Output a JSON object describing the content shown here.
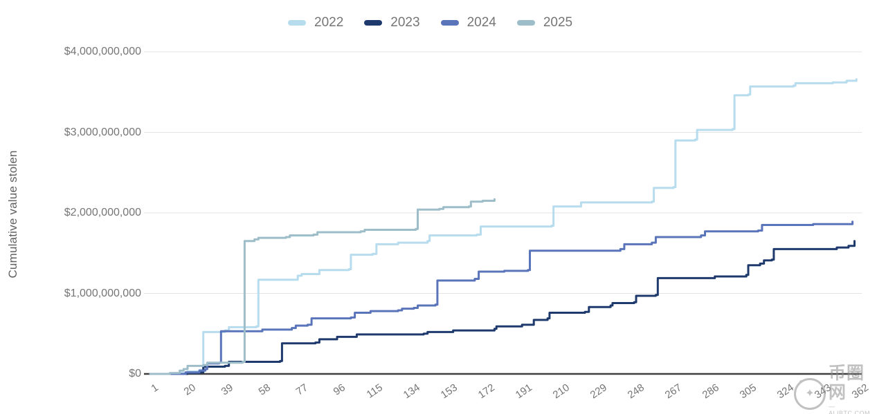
{
  "chart_data": {
    "type": "line",
    "line_style": "step-after",
    "title": "",
    "xlabel": "",
    "ylabel": "Cumulative value stolen",
    "value_unit": "USD (billions)",
    "x_meaning": "day of year",
    "xlim": [
      1,
      366
    ],
    "ylim": [
      0,
      4
    ],
    "grid": "horizontal",
    "legend_position": "top",
    "x_ticks": [
      1,
      20,
      39,
      58,
      77,
      96,
      115,
      134,
      153,
      172,
      191,
      210,
      229,
      248,
      267,
      286,
      305,
      324,
      343,
      362
    ],
    "y_ticks": [
      {
        "value": 0,
        "label": "$0"
      },
      {
        "value": 1,
        "label": "$1,000,000,000"
      },
      {
        "value": 2,
        "label": "$2,000,000,000"
      },
      {
        "value": 3,
        "label": "$3,000,000,000"
      },
      {
        "value": 4,
        "label": "$4,000,000,000"
      }
    ],
    "series": [
      {
        "name": "2022",
        "color": "#b7dcee",
        "points": [
          [
            1,
            0
          ],
          [
            14,
            0.01
          ],
          [
            20,
            0.03
          ],
          [
            26,
            0.05
          ],
          [
            28,
            0.52
          ],
          [
            39,
            0.54
          ],
          [
            41,
            0.58
          ],
          [
            55,
            0.59
          ],
          [
            56,
            1.17
          ],
          [
            76,
            1.22
          ],
          [
            78,
            1.24
          ],
          [
            87,
            1.29
          ],
          [
            102,
            1.3
          ],
          [
            103,
            1.48
          ],
          [
            114,
            1.49
          ],
          [
            116,
            1.61
          ],
          [
            127,
            1.63
          ],
          [
            142,
            1.65
          ],
          [
            143,
            1.72
          ],
          [
            167,
            1.73
          ],
          [
            169,
            1.83
          ],
          [
            205,
            1.84
          ],
          [
            206,
            2.08
          ],
          [
            220,
            2.13
          ],
          [
            256,
            2.14
          ],
          [
            257,
            2.31
          ],
          [
            267,
            2.32
          ],
          [
            268,
            2.9
          ],
          [
            278,
            2.91
          ],
          [
            279,
            3.03
          ],
          [
            297,
            3.04
          ],
          [
            298,
            3.46
          ],
          [
            305,
            3.47
          ],
          [
            306,
            3.57
          ],
          [
            328,
            3.58
          ],
          [
            329,
            3.61
          ],
          [
            348,
            3.62
          ],
          [
            355,
            3.64
          ],
          [
            360,
            3.66
          ]
        ]
      },
      {
        "name": "2023",
        "color": "#1e3a6d",
        "points": [
          [
            1,
            0
          ],
          [
            20,
            0.01
          ],
          [
            26,
            0.02
          ],
          [
            28,
            0.09
          ],
          [
            39,
            0.1
          ],
          [
            41,
            0.15
          ],
          [
            67,
            0.16
          ],
          [
            68,
            0.38
          ],
          [
            85,
            0.39
          ],
          [
            87,
            0.43
          ],
          [
            96,
            0.46
          ],
          [
            106,
            0.49
          ],
          [
            140,
            0.5
          ],
          [
            142,
            0.52
          ],
          [
            155,
            0.54
          ],
          [
            176,
            0.56
          ],
          [
            177,
            0.59
          ],
          [
            190,
            0.61
          ],
          [
            196,
            0.67
          ],
          [
            203,
            0.69
          ],
          [
            204,
            0.76
          ],
          [
            222,
            0.77
          ],
          [
            224,
            0.83
          ],
          [
            235,
            0.85
          ],
          [
            236,
            0.88
          ],
          [
            247,
            0.89
          ],
          [
            248,
            0.97
          ],
          [
            258,
            0.98
          ],
          [
            259,
            1.19
          ],
          [
            288,
            1.21
          ],
          [
            304,
            1.23
          ],
          [
            305,
            1.35
          ],
          [
            311,
            1.37
          ],
          [
            313,
            1.41
          ],
          [
            317,
            1.42
          ],
          [
            318,
            1.55
          ],
          [
            350,
            1.57
          ],
          [
            356,
            1.59
          ],
          [
            359,
            1.65
          ]
        ]
      },
      {
        "name": "2024",
        "color": "#5a74ba",
        "points": [
          [
            1,
            0
          ],
          [
            19,
            0.02
          ],
          [
            26,
            0.04
          ],
          [
            29,
            0.06
          ],
          [
            30,
            0.13
          ],
          [
            36,
            0.14
          ],
          [
            37,
            0.53
          ],
          [
            58,
            0.55
          ],
          [
            73,
            0.57
          ],
          [
            75,
            0.6
          ],
          [
            81,
            0.61
          ],
          [
            83,
            0.69
          ],
          [
            103,
            0.7
          ],
          [
            105,
            0.76
          ],
          [
            113,
            0.78
          ],
          [
            127,
            0.79
          ],
          [
            129,
            0.81
          ],
          [
            135,
            0.82
          ],
          [
            137,
            0.85
          ],
          [
            146,
            0.86
          ],
          [
            147,
            1.16
          ],
          [
            166,
            1.18
          ],
          [
            168,
            1.27
          ],
          [
            181,
            1.28
          ],
          [
            193,
            1.29
          ],
          [
            194,
            1.53
          ],
          [
            240,
            1.55
          ],
          [
            242,
            1.61
          ],
          [
            256,
            1.63
          ],
          [
            258,
            1.7
          ],
          [
            281,
            1.72
          ],
          [
            283,
            1.77
          ],
          [
            310,
            1.78
          ],
          [
            312,
            1.85
          ],
          [
            338,
            1.86
          ],
          [
            358,
            1.89
          ]
        ]
      },
      {
        "name": "2025",
        "color": "#9dbdc9",
        "points": [
          [
            1,
            0
          ],
          [
            11,
            0.01
          ],
          [
            16,
            0.04
          ],
          [
            18,
            0.06
          ],
          [
            20,
            0.1
          ],
          [
            28,
            0.11
          ],
          [
            30,
            0.14
          ],
          [
            48,
            0.15
          ],
          [
            49,
            1.65
          ],
          [
            54,
            1.67
          ],
          [
            56,
            1.69
          ],
          [
            70,
            1.7
          ],
          [
            72,
            1.72
          ],
          [
            84,
            1.73
          ],
          [
            86,
            1.76
          ],
          [
            108,
            1.77
          ],
          [
            110,
            1.79
          ],
          [
            136,
            1.8
          ],
          [
            137,
            2.04
          ],
          [
            148,
            2.05
          ],
          [
            150,
            2.07
          ],
          [
            163,
            2.08
          ],
          [
            164,
            2.14
          ],
          [
            170,
            2.15
          ],
          [
            176,
            2.17
          ]
        ]
      }
    ],
    "colors": {
      "tick_text": "#757575",
      "axis_title_text": "#616161",
      "gridline": "#e3e3e3",
      "baseline": "#3f3f3f"
    }
  },
  "watermark": {
    "icon": "coin-logo",
    "star_glyph": "✦",
    "swirl_glyph": "~",
    "text": "币圈网",
    "domain_label": "—ALIBTC.COM—"
  }
}
